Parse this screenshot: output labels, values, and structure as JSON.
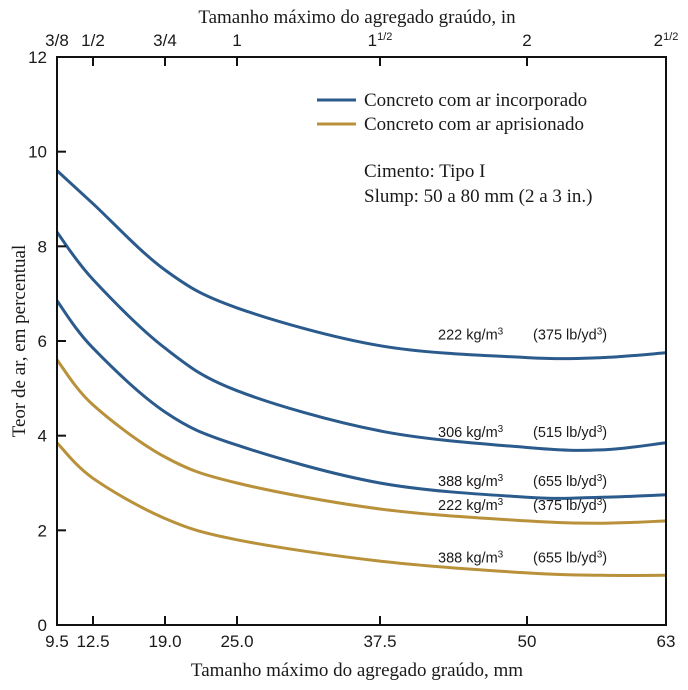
{
  "chart_data": {
    "type": "line",
    "title": "",
    "xlabel": "Tamanho máximo do agregado graúdo, mm",
    "x2label": "Tamanho máximo do agregado graúdo, in",
    "ylabel": "Teor de ar, em percentual",
    "xlim": [
      9.5,
      63
    ],
    "ylim": [
      0,
      12
    ],
    "x_ticks": [
      {
        "value": 9.5,
        "label": "9.5"
      },
      {
        "value": 12.5,
        "label": "12.5"
      },
      {
        "value": 19.0,
        "label": "19.0"
      },
      {
        "value": 25.0,
        "label": "25.0"
      },
      {
        "value": 37.5,
        "label": "37.5"
      },
      {
        "value": 50,
        "label": "50"
      },
      {
        "value": 63,
        "label": "63"
      }
    ],
    "x2_ticks": [
      {
        "value": 9.5,
        "label": "3/8"
      },
      {
        "value": 12.5,
        "label": "1/2"
      },
      {
        "value": 19.0,
        "label": "3/4"
      },
      {
        "value": 25.0,
        "label": "1"
      },
      {
        "value": 37.5,
        "label": "1",
        "frac": "1/2"
      },
      {
        "value": 50,
        "label": "2"
      },
      {
        "value": 63,
        "label": "2",
        "frac": "1/2"
      }
    ],
    "y_ticks": [
      0,
      2,
      4,
      6,
      8,
      10,
      12
    ],
    "legend": {
      "placement": "top-right",
      "items": [
        {
          "label": "Concreto com ar incorporado",
          "color": "#2b5a8c"
        },
        {
          "label": "Concreto com ar aprisionado",
          "color": "#b8913a"
        }
      ],
      "notes": [
        "Cimento: Tipo I",
        "Slump: 50 a 80 mm (2 a 3 in.)"
      ]
    },
    "series": [
      {
        "group": "air-entrained",
        "color": "#2b5a8c",
        "label_si": "222 kg/m",
        "label_us": "(375 lb/yd",
        "label_sup": "3",
        "x": [
          9.5,
          12.5,
          19.0,
          25.0,
          37.5,
          50,
          57,
          63
        ],
        "y": [
          9.6,
          8.9,
          7.5,
          6.7,
          5.9,
          5.65,
          5.65,
          5.75
        ]
      },
      {
        "group": "air-entrained",
        "color": "#2b5a8c",
        "label_si": "306 kg/m",
        "label_us": "(515 lb/yd",
        "label_sup": "3",
        "x": [
          9.5,
          12.5,
          19.0,
          25.0,
          37.5,
          50,
          57,
          63
        ],
        "y": [
          8.3,
          7.3,
          5.85,
          4.95,
          4.1,
          3.75,
          3.7,
          3.85
        ]
      },
      {
        "group": "air-entrained",
        "color": "#2b5a8c",
        "label_si": "388 kg/m",
        "label_us": "(655 lb/yd",
        "label_sup": "3",
        "x": [
          9.5,
          12.5,
          19.0,
          25.0,
          37.5,
          50,
          57,
          63
        ],
        "y": [
          6.85,
          5.85,
          4.5,
          3.8,
          3.0,
          2.7,
          2.7,
          2.75
        ]
      },
      {
        "group": "entrapped",
        "color": "#b8913a",
        "label_si": "222 kg/m",
        "label_us": "(375 lb/yd",
        "label_sup": "3",
        "x": [
          9.5,
          12.5,
          19.0,
          25.0,
          37.5,
          50,
          57,
          63
        ],
        "y": [
          5.6,
          4.65,
          3.55,
          3.0,
          2.45,
          2.2,
          2.15,
          2.2
        ]
      },
      {
        "group": "entrapped",
        "color": "#b8913a",
        "label_si": "388 kg/m",
        "label_us": "(655 lb/yd",
        "label_sup": "3",
        "x": [
          9.5,
          12.5,
          19.0,
          25.0,
          37.5,
          50,
          57,
          63
        ],
        "y": [
          3.85,
          3.1,
          2.25,
          1.8,
          1.35,
          1.1,
          1.05,
          1.05
        ]
      }
    ],
    "grid": false
  }
}
